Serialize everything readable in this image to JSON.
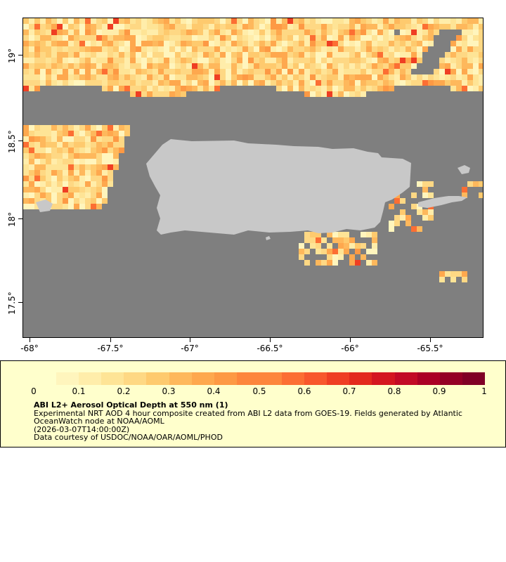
{
  "map": {
    "axis_x_labels": [
      "-68°",
      "-67.5°",
      "-67°",
      "-66.5°",
      "-66°",
      "-65.5°"
    ],
    "axis_y_labels": [
      "19°",
      "18.5°",
      "18°",
      "17.5°"
    ],
    "ocean_color": "#7f7f7f",
    "land_color": "#c8c8c8"
  },
  "legend": {
    "tick_labels": [
      "0",
      "0.1",
      "0.2",
      "0.3",
      "0.4",
      "0.5",
      "0.6",
      "0.7",
      "0.8",
      "0.9",
      "1"
    ],
    "title": "ABI L2+ Aerosol Optical Depth at 550 nm (1)",
    "line1": "Experimental NRT AOD 4 hour composite created from ABI L2 data from GOES-19. Fields generated by Atlantic",
    "line2": "OceanWatch node at NOAA/AOML",
    "line3": "(2026-03-07T14:00:00Z)",
    "line4": "Data courtesy of USDOC/NOAA/OAR/AOML/PHOD",
    "colormap": [
      "#ffffcc",
      "#fff5bd",
      "#ffedaa",
      "#fee496",
      "#fed884",
      "#feca6e",
      "#feb85c",
      "#fea84e",
      "#fd9944",
      "#fd863c",
      "#fc6e33",
      "#f8572c",
      "#ef3e23",
      "#e3291d",
      "#d41620",
      "#c20a26",
      "#ab0026",
      "#940026",
      "#800026"
    ]
  }
}
